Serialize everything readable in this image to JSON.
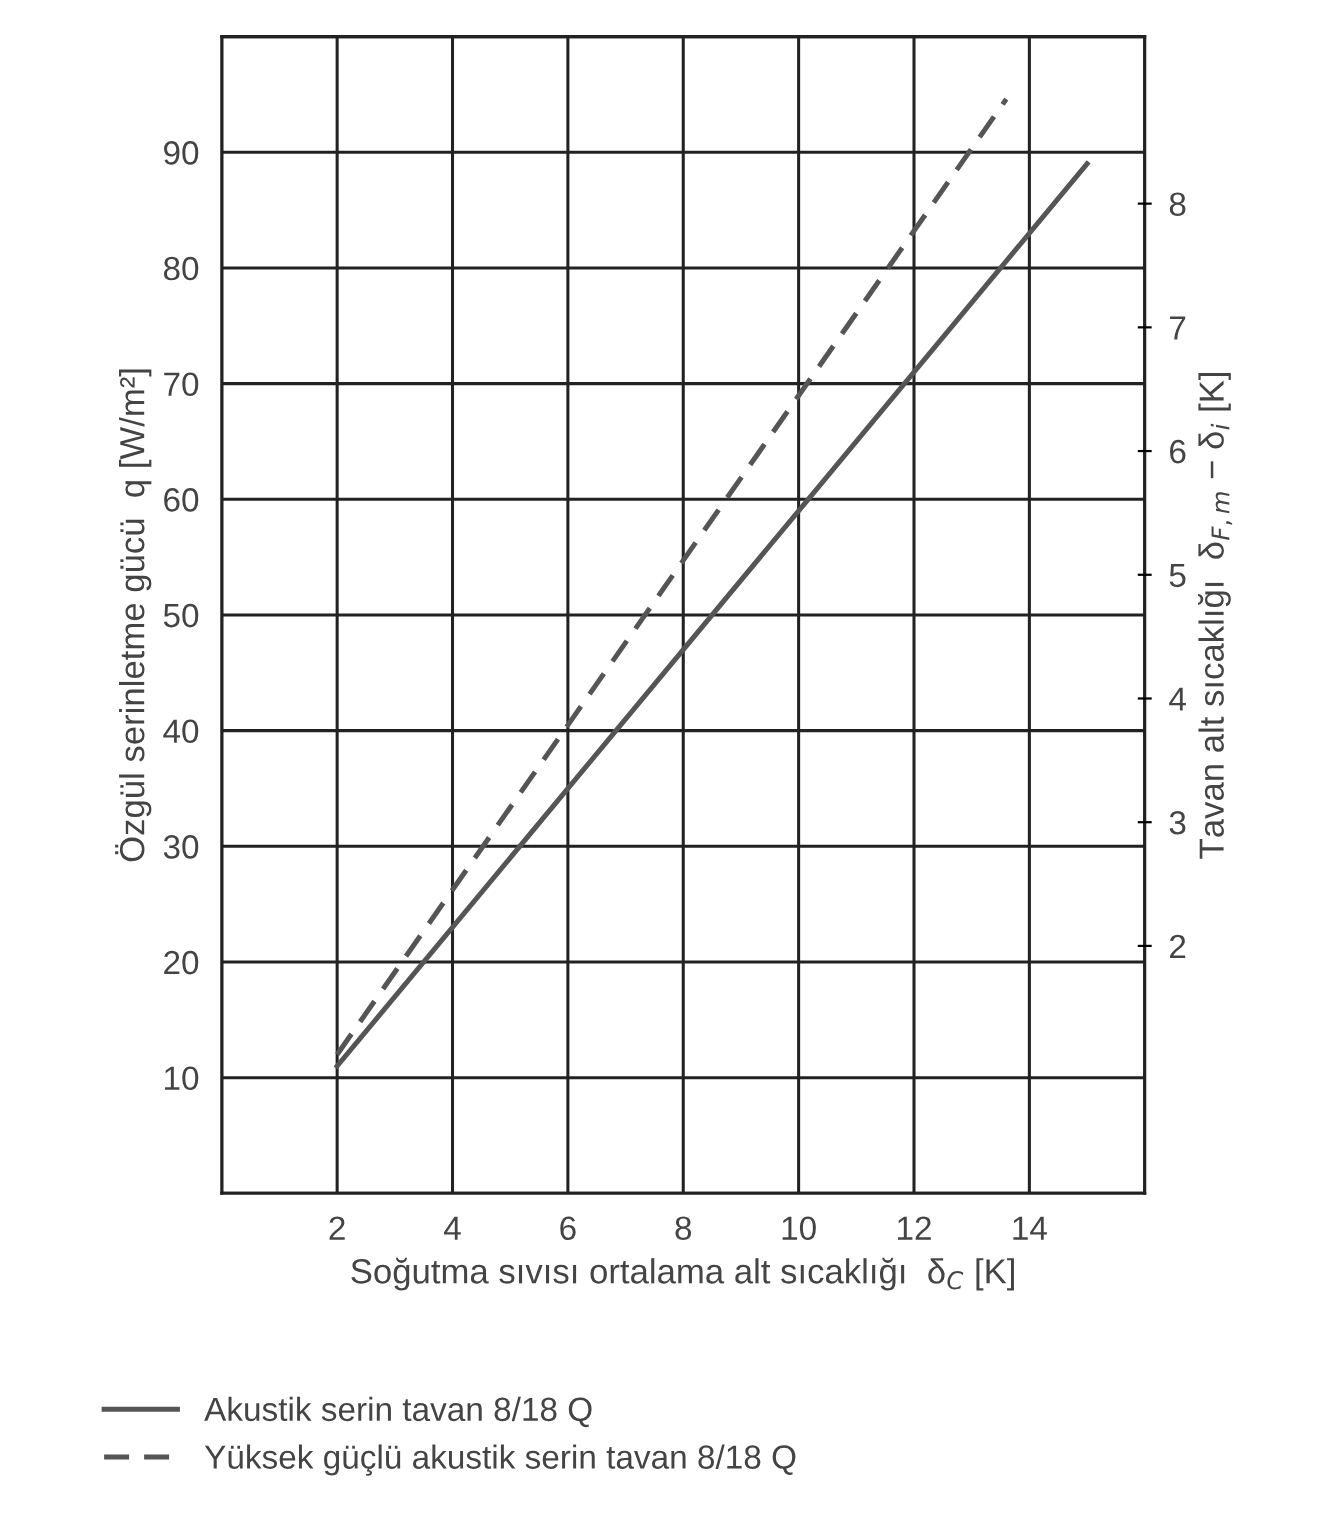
{
  "chart_data": {
    "type": "line",
    "xlabel": "Soğutma sıvısı ortalama alt sıcaklığı  δ$_{C}$ [K]",
    "ylabel": "Özgül serinletme gücü  q [W/m²]",
    "y2label": "Tavan alt sıcaklığı  δ$_{F,m}$ − δ$_{i}$ [K]",
    "xlim": [
      0,
      16
    ],
    "xticks": [
      {
        "value": 0,
        "label": null
      },
      2,
      4,
      6,
      8,
      10,
      12,
      14,
      {
        "value": 16,
        "label": null
      }
    ],
    "ylim": [
      0,
      100
    ],
    "yticks": [
      {
        "value": 0,
        "label": null
      },
      10,
      20,
      30,
      40,
      50,
      60,
      70,
      80,
      90,
      {
        "value": 100,
        "label": null
      }
    ],
    "y2lim": [
      0,
      9.35
    ],
    "y2ticks": [
      2,
      3,
      4,
      5,
      6,
      7,
      8
    ],
    "grid": true,
    "legend": "bottom",
    "marker": "none",
    "series": [
      {
        "name": "Akustik serin tavan 8/18 Q",
        "color": "#555555",
        "line_style": "solid",
        "x": [
          2,
          15
        ],
        "values": [
          11,
          89
        ]
      },
      {
        "name": "Yüksek güçlü akustik serin tavan 8/18 Q",
        "color": "#555555",
        "line_style": "dashed",
        "x": [
          2,
          13.6
        ],
        "values": [
          12,
          94.6
        ]
      }
    ]
  }
}
